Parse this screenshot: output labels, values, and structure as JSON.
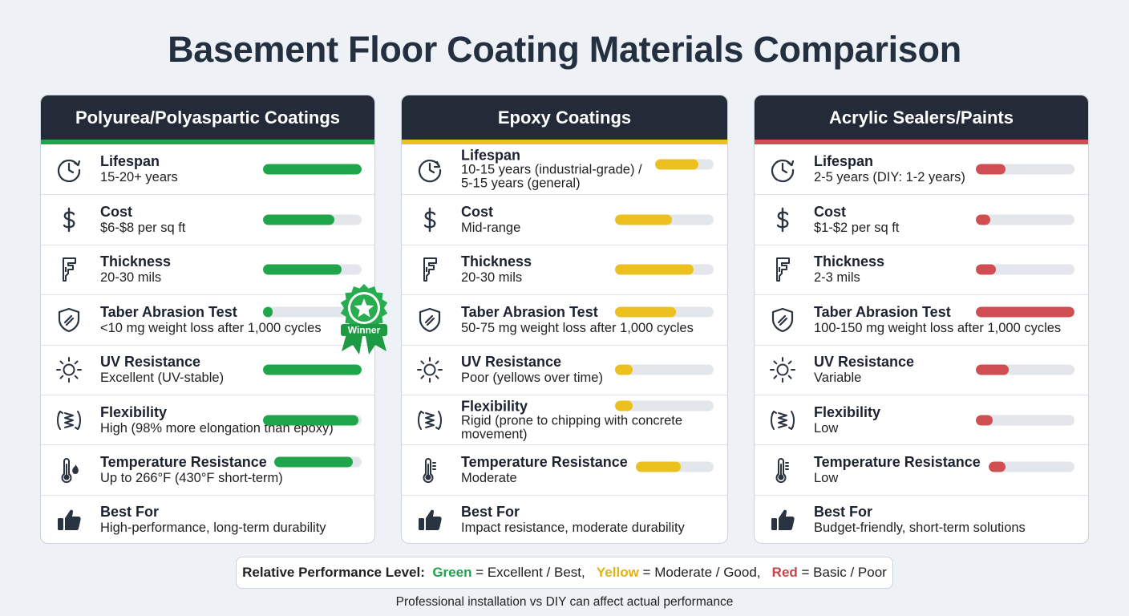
{
  "title": "Basement Floor Coating Materials Comparison",
  "colors": {
    "green": "#1fa64a",
    "yellow": "#ecc01f",
    "red": "#cf4e52",
    "header": "#222b37"
  },
  "winner_label": "Winner",
  "cards": [
    {
      "name": "Polyurea/Polyaspartic Coatings",
      "accent": "#1fa64a",
      "rows": [
        {
          "icon": "clock-arrow-icon",
          "label": "Lifespan",
          "value": "15-20+ years",
          "level": 1.0
        },
        {
          "icon": "dollar-icon",
          "label": "Cost",
          "value": "$6-$8 per sq ft",
          "level": 0.72
        },
        {
          "icon": "caliper-icon",
          "label": "Thickness",
          "value": "20-30 mils",
          "level": 0.8
        },
        {
          "icon": "shield-icon",
          "label": "Taber Abrasion Test",
          "value": "<10 mg weight loss after 1,000 cycles",
          "level": 0.1
        },
        {
          "icon": "sun-icon",
          "label": "UV Resistance",
          "value": "Excellent (UV-stable)",
          "level": 1.0
        },
        {
          "icon": "spring-icon",
          "label": "Flexibility",
          "value": "High (98% more elongation than epoxy)",
          "level": 0.97
        },
        {
          "icon": "thermometer-flame-icon",
          "label": "Temperature Resistance",
          "value": "Up to 266°F (430°F short-term)",
          "level": 0.9
        },
        {
          "icon": "thumbs-up-icon",
          "label": "Best For",
          "value": "High-performance, long-term durability",
          "level": null
        }
      ]
    },
    {
      "name": "Epoxy Coatings",
      "accent": "#ecc01f",
      "rows": [
        {
          "icon": "clock-icon",
          "label": "Lifespan",
          "value": "10-15 years (industrial-grade) /",
          "value2": "5-15 years (general)",
          "level": 0.74
        },
        {
          "icon": "dollar-icon",
          "label": "Cost",
          "value": "Mid-range",
          "level": 0.58
        },
        {
          "icon": "caliper-icon",
          "label": "Thickness",
          "value": "20-30 mils",
          "level": 0.8
        },
        {
          "icon": "shield-icon",
          "label": "Taber Abrasion Test",
          "value": "50-75 mg weight loss after 1,000 cycles",
          "level": 0.62
        },
        {
          "icon": "sun-icon",
          "label": "UV Resistance",
          "value": "Poor (yellows over time)",
          "level": 0.18
        },
        {
          "icon": "spring-icon",
          "label": "Flexibility",
          "value": "Rigid (prone to chipping with concrete",
          "value2": "movement)",
          "level": 0.18
        },
        {
          "icon": "thermometer-icon",
          "label": "Temperature Resistance",
          "value": "Moderate",
          "level": 0.58
        },
        {
          "icon": "thumbs-up-icon",
          "label": "Best For",
          "value": "Impact resistance, moderate durability",
          "level": null
        }
      ]
    },
    {
      "name": "Acrylic Sealers/Paints",
      "accent": "#cf4e52",
      "rows": [
        {
          "icon": "clock-arrow-icon",
          "label": "Lifespan",
          "value": "2-5 years (DIY: 1-2 years)",
          "level": 0.3
        },
        {
          "icon": "dollar-icon",
          "label": "Cost",
          "value": "$1-$2 per sq ft",
          "level": 0.15
        },
        {
          "icon": "caliper-icon",
          "label": "Thickness",
          "value": "2-3 mils",
          "level": 0.2
        },
        {
          "icon": "shield-icon",
          "label": "Taber Abrasion Test",
          "value": "100-150 mg weight loss after 1,000 cycles",
          "level": 1.0
        },
        {
          "icon": "sun-icon",
          "label": "UV Resistance",
          "value": "Variable",
          "level": 0.33
        },
        {
          "icon": "spring-icon",
          "label": "Flexibility",
          "value": "Low",
          "level": 0.17
        },
        {
          "icon": "thermometer-icon",
          "label": "Temperature Resistance",
          "value": "Low",
          "level": 0.2
        },
        {
          "icon": "thumbs-up-icon",
          "label": "Best For",
          "value": "Budget-friendly, short-term solutions",
          "level": null
        }
      ]
    }
  ],
  "legend": {
    "prefix": "Relative Performance Level:",
    "green_word": "Green",
    "green_text": " = Excellent / Best,",
    "yellow_word": "Yellow",
    "yellow_text": " = Moderate / Good,",
    "red_word": "Red",
    "red_text": " = Basic / Poor"
  },
  "footnote": "Professional installation vs DIY can affect actual performance"
}
